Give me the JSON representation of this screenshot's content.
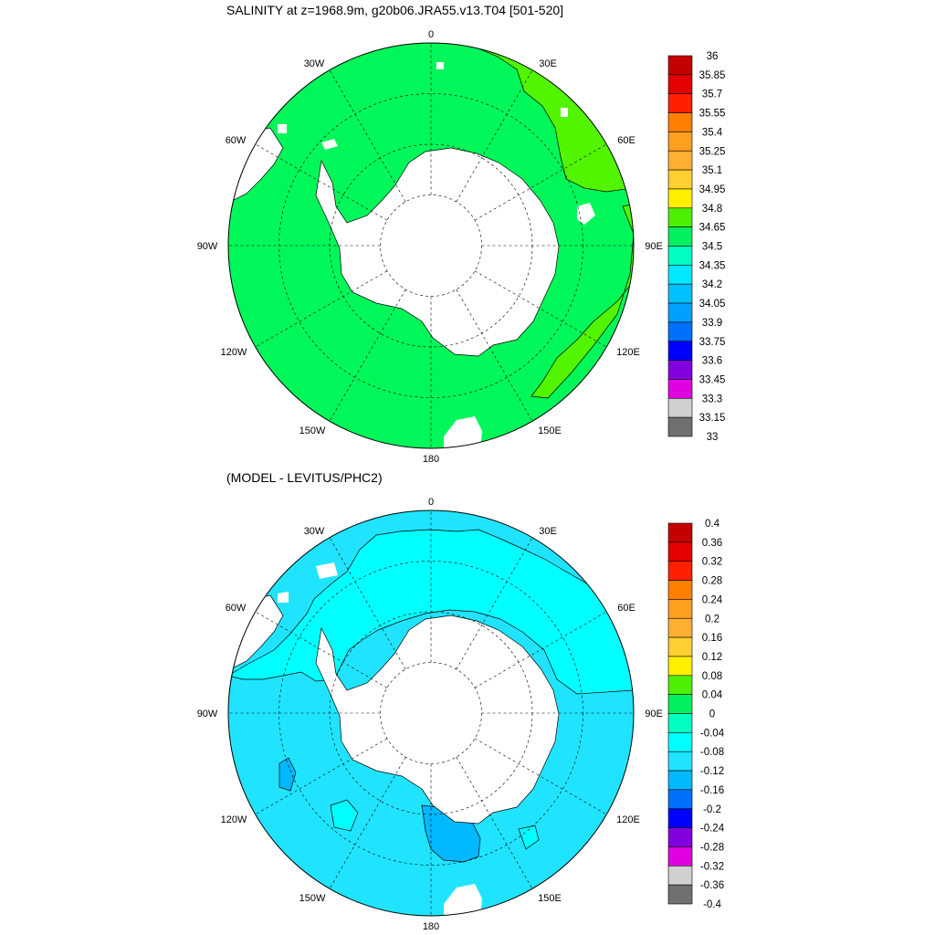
{
  "panels": [
    {
      "title": "SALINITY at z=1968.9m, g20b06.JRA55.v13.T04 [501-520]",
      "ocean_color": "#00f75a",
      "zones": [
        {
          "name": "34.65-34.8",
          "color": "#52f400"
        }
      ],
      "colorbar": {
        "labels": [
          "36",
          "35.85",
          "35.7",
          "35.55",
          "35.4",
          "35.25",
          "35.1",
          "34.95",
          "34.8",
          "34.65",
          "34.5",
          "34.35",
          "34.2",
          "34.05",
          "33.9",
          "33.75",
          "33.6",
          "33.45",
          "33.3",
          "33.15",
          "33"
        ],
        "colors": [
          "#c40000",
          "#e40000",
          "#ff2000",
          "#ff7f00",
          "#ff9f20",
          "#ffb030",
          "#ffd030",
          "#fff000",
          "#4ef000",
          "#00f060",
          "#00ffc0",
          "#00e8ff",
          "#00c0ff",
          "#00a0ff",
          "#0070ff",
          "#0000ff",
          "#8000e0",
          "#e000e0",
          "#d0d0d0",
          "#707070"
        ]
      }
    },
    {
      "title": "(MODEL - LEVITUS/PHC2)",
      "ocean_color": "#20e4ff",
      "zones": [
        {
          "name": "-0.08 to -0.04 (north of 60S)",
          "color": "#00ffff"
        },
        {
          "name": "-0.16 to -0.12 (Ross Sea)",
          "color": "#00b8ff"
        }
      ],
      "colorbar": {
        "labels": [
          "0.4",
          "0.36",
          "0.32",
          "0.28",
          "0.24",
          "0.2",
          "0.16",
          "0.12",
          "0.08",
          "0.04",
          "0",
          "-0.04",
          "-0.08",
          "-0.12",
          "-0.16",
          "-0.2",
          "-0.24",
          "-0.28",
          "-0.32",
          "-0.36",
          "-0.4"
        ],
        "colors": [
          "#c40000",
          "#e40000",
          "#ff2000",
          "#ff7f00",
          "#ff9f20",
          "#ffb030",
          "#ffd030",
          "#fff000",
          "#4ef000",
          "#00f060",
          "#00ffc0",
          "#00ffff",
          "#20e4ff",
          "#00b8ff",
          "#0070ff",
          "#0000ff",
          "#8000e0",
          "#e000e0",
          "#d0d0d0",
          "#707070"
        ]
      }
    }
  ],
  "longitude_labels": [
    "0",
    "30E",
    "60E",
    "90E",
    "120E",
    "150E",
    "180",
    "150W",
    "120W",
    "90W",
    "60W",
    "30W"
  ]
}
